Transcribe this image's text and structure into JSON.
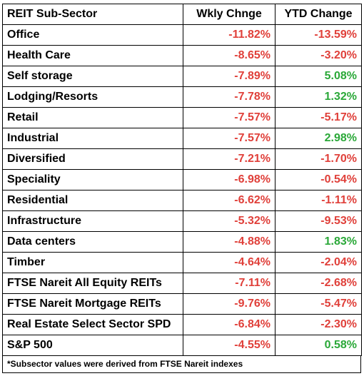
{
  "headers": [
    "REIT Sub-Sector",
    "Wkly Chnge",
    "YTD Change"
  ],
  "rows": [
    {
      "name": "Office",
      "wkly": "-11.82%",
      "ytd": "-13.59%"
    },
    {
      "name": "Health Care",
      "wkly": "-8.65%",
      "ytd": "-3.20%"
    },
    {
      "name": "Self storage",
      "wkly": "-7.89%",
      "ytd": "5.08%"
    },
    {
      "name": "Lodging/Resorts",
      "wkly": "-7.78%",
      "ytd": "1.32%"
    },
    {
      "name": "Retail",
      "wkly": "-7.57%",
      "ytd": "-5.17%"
    },
    {
      "name": "Industrial",
      "wkly": "-7.57%",
      "ytd": "2.98%"
    },
    {
      "name": "Diversified",
      "wkly": "-7.21%",
      "ytd": "-1.70%"
    },
    {
      "name": "Speciality",
      "wkly": "-6.98%",
      "ytd": "-0.54%"
    },
    {
      "name": "Residential",
      "wkly": "-6.62%",
      "ytd": "-1.11%"
    },
    {
      "name": "Infrastructure",
      "wkly": "-5.32%",
      "ytd": "-9.53%"
    },
    {
      "name": "Data centers",
      "wkly": "-4.88%",
      "ytd": "1.83%"
    },
    {
      "name": "Timber",
      "wkly": "-4.64%",
      "ytd": "-2.04%"
    },
    {
      "name": "FTSE Nareit All Equity REITs",
      "wkly": "-7.11%",
      "ytd": "-2.68%"
    },
    {
      "name": "FTSE Nareit Mortgage REITs",
      "wkly": "-9.76%",
      "ytd": "-5.47%"
    },
    {
      "name": "Real Estate Select Sector SPD",
      "wkly": "-6.84%",
      "ytd": "-2.30%"
    },
    {
      "name": "S&P 500",
      "wkly": "-4.55%",
      "ytd": "0.58%"
    }
  ],
  "footnote": "*Subsector values were derived from FTSE Nareit indexes",
  "colors": {
    "negative": "#e0403a",
    "positive": "#2aa838"
  }
}
